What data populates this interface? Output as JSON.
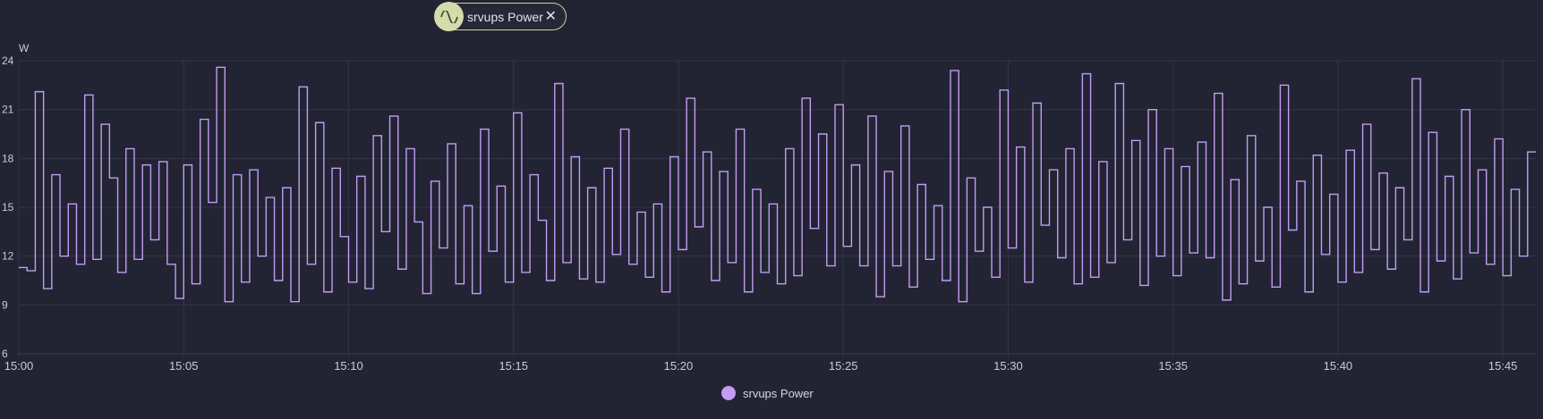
{
  "filter_chip": {
    "label": "srvups Power",
    "icon": "sine-wave-icon",
    "close_icon": "close-icon"
  },
  "colors": {
    "background": "#222433",
    "series": "#c49cf2",
    "grid": "#32354a",
    "chip_accent": "#d3dcaa"
  },
  "chart_data": {
    "type": "line",
    "step": true,
    "ylabel": "W",
    "ylim": [
      6,
      24
    ],
    "yticks": [
      "6",
      "9",
      "12",
      "15",
      "18",
      "21",
      "24"
    ],
    "xlim": [
      "15:00",
      "15:46"
    ],
    "xticks": [
      "15:00",
      "15:05",
      "15:10",
      "15:15",
      "15:20",
      "15:25",
      "15:30",
      "15:35",
      "15:40",
      "15:45"
    ],
    "grid": true,
    "legend": "bottom-center",
    "series": [
      {
        "name": "srvups Power",
        "color": "#c49cf2",
        "points": [
          [
            "15:00:00",
            11.3
          ],
          [
            "15:00:15",
            11.1
          ],
          [
            "15:00:30",
            22.1
          ],
          [
            "15:00:45",
            10.0
          ],
          [
            "15:01:00",
            17.0
          ],
          [
            "15:01:15",
            12.0
          ],
          [
            "15:01:30",
            15.2
          ],
          [
            "15:01:45",
            11.5
          ],
          [
            "15:02:00",
            21.9
          ],
          [
            "15:02:15",
            11.8
          ],
          [
            "15:02:30",
            20.1
          ],
          [
            "15:02:45",
            16.8
          ],
          [
            "15:03:00",
            11.0
          ],
          [
            "15:03:15",
            18.6
          ],
          [
            "15:03:30",
            11.8
          ],
          [
            "15:03:45",
            17.6
          ],
          [
            "15:04:00",
            13.0
          ],
          [
            "15:04:15",
            17.8
          ],
          [
            "15:04:30",
            11.5
          ],
          [
            "15:04:45",
            9.4
          ],
          [
            "15:05:00",
            17.6
          ],
          [
            "15:05:15",
            10.3
          ],
          [
            "15:05:30",
            20.4
          ],
          [
            "15:05:45",
            15.3
          ],
          [
            "15:06:00",
            23.6
          ],
          [
            "15:06:15",
            9.2
          ],
          [
            "15:06:30",
            17.0
          ],
          [
            "15:06:45",
            10.4
          ],
          [
            "15:07:00",
            17.3
          ],
          [
            "15:07:15",
            12.0
          ],
          [
            "15:07:30",
            15.6
          ],
          [
            "15:07:45",
            10.5
          ],
          [
            "15:08:00",
            16.2
          ],
          [
            "15:08:15",
            9.2
          ],
          [
            "15:08:30",
            22.4
          ],
          [
            "15:08:45",
            11.5
          ],
          [
            "15:09:00",
            20.2
          ],
          [
            "15:09:15",
            9.8
          ],
          [
            "15:09:30",
            17.4
          ],
          [
            "15:09:45",
            13.2
          ],
          [
            "15:10:00",
            10.4
          ],
          [
            "15:10:15",
            16.9
          ],
          [
            "15:10:30",
            10.0
          ],
          [
            "15:10:45",
            19.4
          ],
          [
            "15:11:00",
            13.5
          ],
          [
            "15:11:15",
            20.6
          ],
          [
            "15:11:30",
            11.2
          ],
          [
            "15:11:45",
            18.6
          ],
          [
            "15:12:00",
            14.1
          ],
          [
            "15:12:15",
            9.7
          ],
          [
            "15:12:30",
            16.6
          ],
          [
            "15:12:45",
            12.5
          ],
          [
            "15:13:00",
            18.9
          ],
          [
            "15:13:15",
            10.3
          ],
          [
            "15:13:30",
            15.1
          ],
          [
            "15:13:45",
            9.7
          ],
          [
            "15:14:00",
            19.8
          ],
          [
            "15:14:15",
            12.3
          ],
          [
            "15:14:30",
            16.3
          ],
          [
            "15:14:45",
            10.4
          ],
          [
            "15:15:00",
            20.8
          ],
          [
            "15:15:15",
            11.0
          ],
          [
            "15:15:30",
            17.0
          ],
          [
            "15:15:45",
            14.2
          ],
          [
            "15:16:00",
            10.5
          ],
          [
            "15:16:15",
            22.6
          ],
          [
            "15:16:30",
            11.6
          ],
          [
            "15:16:45",
            18.1
          ],
          [
            "15:17:00",
            10.6
          ],
          [
            "15:17:15",
            16.2
          ],
          [
            "15:17:30",
            10.4
          ],
          [
            "15:17:45",
            17.4
          ],
          [
            "15:18:00",
            12.1
          ],
          [
            "15:18:15",
            19.8
          ],
          [
            "15:18:30",
            11.5
          ],
          [
            "15:18:45",
            14.7
          ],
          [
            "15:19:00",
            10.7
          ],
          [
            "15:19:15",
            15.2
          ],
          [
            "15:19:30",
            9.8
          ],
          [
            "15:19:45",
            18.1
          ],
          [
            "15:20:00",
            12.4
          ],
          [
            "15:20:15",
            21.7
          ],
          [
            "15:20:30",
            13.8
          ],
          [
            "15:20:45",
            18.4
          ],
          [
            "15:21:00",
            10.5
          ],
          [
            "15:21:15",
            17.2
          ],
          [
            "15:21:30",
            11.6
          ],
          [
            "15:21:45",
            19.8
          ],
          [
            "15:22:00",
            9.8
          ],
          [
            "15:22:15",
            16.1
          ],
          [
            "15:22:30",
            11.0
          ],
          [
            "15:22:45",
            15.2
          ],
          [
            "15:23:00",
            10.3
          ],
          [
            "15:23:15",
            18.6
          ],
          [
            "15:23:30",
            10.8
          ],
          [
            "15:23:45",
            21.7
          ],
          [
            "15:24:00",
            13.7
          ],
          [
            "15:24:15",
            19.5
          ],
          [
            "15:24:30",
            11.4
          ],
          [
            "15:24:45",
            21.3
          ],
          [
            "15:25:00",
            12.6
          ],
          [
            "15:25:15",
            17.6
          ],
          [
            "15:25:30",
            11.4
          ],
          [
            "15:25:45",
            20.6
          ],
          [
            "15:26:00",
            9.5
          ],
          [
            "15:26:15",
            17.2
          ],
          [
            "15:26:30",
            11.4
          ],
          [
            "15:26:45",
            20.0
          ],
          [
            "15:27:00",
            10.1
          ],
          [
            "15:27:15",
            16.4
          ],
          [
            "15:27:30",
            11.8
          ],
          [
            "15:27:45",
            15.1
          ],
          [
            "15:28:00",
            10.5
          ],
          [
            "15:28:15",
            23.4
          ],
          [
            "15:28:30",
            9.2
          ],
          [
            "15:28:45",
            16.8
          ],
          [
            "15:29:00",
            12.3
          ],
          [
            "15:29:15",
            15.0
          ],
          [
            "15:29:30",
            10.7
          ],
          [
            "15:29:45",
            22.2
          ],
          [
            "15:30:00",
            12.5
          ],
          [
            "15:30:15",
            18.7
          ],
          [
            "15:30:30",
            10.4
          ],
          [
            "15:30:45",
            21.4
          ],
          [
            "15:31:00",
            13.9
          ],
          [
            "15:31:15",
            17.3
          ],
          [
            "15:31:30",
            11.9
          ],
          [
            "15:31:45",
            18.6
          ],
          [
            "15:32:00",
            10.3
          ],
          [
            "15:32:15",
            23.2
          ],
          [
            "15:32:30",
            10.7
          ],
          [
            "15:32:45",
            17.8
          ],
          [
            "15:33:00",
            11.6
          ],
          [
            "15:33:15",
            22.6
          ],
          [
            "15:33:30",
            13.0
          ],
          [
            "15:33:45",
            19.1
          ],
          [
            "15:34:00",
            10.2
          ],
          [
            "15:34:15",
            21.0
          ],
          [
            "15:34:30",
            12.0
          ],
          [
            "15:34:45",
            18.6
          ],
          [
            "15:35:00",
            10.8
          ],
          [
            "15:35:15",
            17.5
          ],
          [
            "15:35:30",
            12.2
          ],
          [
            "15:35:45",
            19.0
          ],
          [
            "15:36:00",
            11.9
          ],
          [
            "15:36:15",
            22.0
          ],
          [
            "15:36:30",
            9.3
          ],
          [
            "15:36:45",
            16.7
          ],
          [
            "15:37:00",
            10.3
          ],
          [
            "15:37:15",
            19.4
          ],
          [
            "15:37:30",
            11.7
          ],
          [
            "15:37:45",
            15.0
          ],
          [
            "15:38:00",
            10.1
          ],
          [
            "15:38:15",
            22.5
          ],
          [
            "15:38:30",
            13.6
          ],
          [
            "15:38:45",
            16.6
          ],
          [
            "15:39:00",
            9.8
          ],
          [
            "15:39:15",
            18.2
          ],
          [
            "15:39:30",
            12.1
          ],
          [
            "15:39:45",
            15.8
          ],
          [
            "15:40:00",
            10.4
          ],
          [
            "15:40:15",
            18.5
          ],
          [
            "15:40:30",
            11.0
          ],
          [
            "15:40:45",
            20.1
          ],
          [
            "15:41:00",
            12.4
          ],
          [
            "15:41:15",
            17.1
          ],
          [
            "15:41:30",
            11.2
          ],
          [
            "15:41:45",
            16.2
          ],
          [
            "15:42:00",
            13.0
          ],
          [
            "15:42:15",
            22.9
          ],
          [
            "15:42:30",
            9.8
          ],
          [
            "15:42:45",
            19.6
          ],
          [
            "15:43:00",
            11.7
          ],
          [
            "15:43:15",
            16.9
          ],
          [
            "15:43:30",
            10.6
          ],
          [
            "15:43:45",
            21.0
          ],
          [
            "15:44:00",
            12.2
          ],
          [
            "15:44:15",
            17.3
          ],
          [
            "15:44:30",
            11.5
          ],
          [
            "15:44:45",
            19.2
          ],
          [
            "15:45:00",
            10.8
          ],
          [
            "15:45:15",
            16.1
          ],
          [
            "15:45:30",
            12.0
          ],
          [
            "15:45:45",
            18.4
          ]
        ],
        "points_note_removed": true
      }
    ]
  },
  "legend": {
    "label": "srvups Power"
  }
}
